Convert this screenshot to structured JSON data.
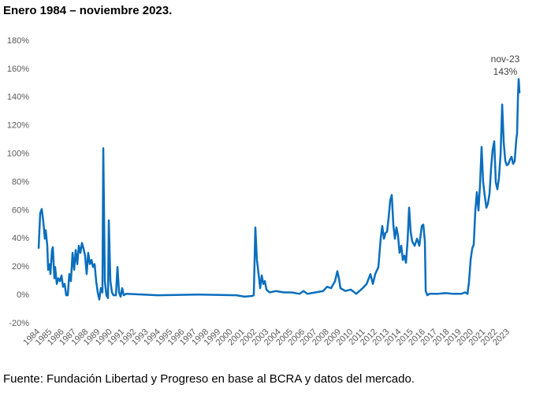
{
  "chart_data": {
    "type": "line",
    "title": "Enero 1984 – noviembre 2023.",
    "source": "Fuente: Fundación Libertad y Progreso en base al BCRA y datos del mercado.",
    "annotations": [
      {
        "text": "nov-23"
      },
      {
        "text": "143%"
      }
    ],
    "color": "#0a6ebd",
    "grid": false,
    "xlim": [
      1984,
      2024
    ],
    "xticks": [
      1984,
      1985,
      1986,
      1987,
      1988,
      1989,
      1990,
      1991,
      1992,
      1993,
      1994,
      1995,
      1996,
      1997,
      1998,
      1999,
      2000,
      2001,
      2002,
      2003,
      2004,
      2005,
      2006,
      2007,
      2008,
      2009,
      2010,
      2011,
      2012,
      2013,
      2014,
      2015,
      2016,
      2017,
      2018,
      2019,
      2020,
      2021,
      2022,
      2023
    ],
    "ylim": [
      -20,
      180
    ],
    "yticks": [
      {
        "value": -20,
        "label": "-20%"
      },
      {
        "value": 0,
        "label": "0%"
      },
      {
        "value": 20,
        "label": "20%"
      },
      {
        "value": 40,
        "label": "40%"
      },
      {
        "value": 60,
        "label": "60%"
      },
      {
        "value": 80,
        "label": "80%"
      },
      {
        "value": 100,
        "label": "100%"
      },
      {
        "value": 120,
        "label": "120%"
      },
      {
        "value": 140,
        "label": "140%"
      },
      {
        "value": 160,
        "label": "160%"
      },
      {
        "value": 180,
        "label": "180%"
      }
    ],
    "x": [
      1984.0,
      1984.13,
      1984.26,
      1984.39,
      1984.52,
      1984.59,
      1984.72,
      1984.79,
      1984.92,
      1984.98,
      1985.11,
      1985.18,
      1985.31,
      1985.37,
      1985.51,
      1985.64,
      1985.77,
      1985.9,
      1986.03,
      1986.16,
      1986.29,
      1986.42,
      1986.55,
      1986.68,
      1986.82,
      1986.95,
      1987.08,
      1987.21,
      1987.34,
      1987.47,
      1987.6,
      1987.73,
      1987.86,
      1987.99,
      1988.12,
      1988.26,
      1988.39,
      1988.52,
      1988.65,
      1988.78,
      1988.91,
      1989.04,
      1989.17,
      1989.3,
      1989.37,
      1989.5,
      1989.63,
      1989.76,
      1989.83,
      1989.96,
      1990.09,
      1990.22,
      1990.42,
      1990.55,
      1990.68,
      1990.81,
      1990.94,
      1991.07,
      1991.27,
      1993.89,
      1997.16,
      2000.43,
      2001.09,
      2001.74,
      2001.87,
      2002.0,
      2002.13,
      2002.27,
      2002.4,
      2002.53,
      2002.66,
      2002.79,
      2002.92,
      2003.18,
      2003.71,
      2004.36,
      2005.02,
      2005.67,
      2006.0,
      2006.33,
      2006.98,
      2007.63,
      2007.96,
      2008.29,
      2008.62,
      2008.81,
      2008.94,
      2009.07,
      2009.47,
      2009.93,
      2010.38,
      2010.91,
      2011.24,
      2011.56,
      2011.76,
      2011.96,
      2012.22,
      2012.41,
      2012.54,
      2012.68,
      2012.81,
      2012.94,
      2013.07,
      2013.2,
      2013.33,
      2013.46,
      2013.59,
      2013.72,
      2013.85,
      2013.98,
      2014.12,
      2014.25,
      2014.38,
      2014.51,
      2014.64,
      2014.77,
      2014.9,
      2015.03,
      2015.23,
      2015.43,
      2015.62,
      2015.82,
      2015.95,
      2016.08,
      2016.15,
      2016.28,
      2016.47,
      2017.13,
      2017.78,
      2018.44,
      2019.09,
      2019.42,
      2019.62,
      2019.75,
      2019.88,
      2020.01,
      2020.14,
      2020.27,
      2020.4,
      2020.53,
      2020.66,
      2020.79,
      2020.92,
      2021.06,
      2021.19,
      2021.32,
      2021.45,
      2021.58,
      2021.71,
      2021.84,
      2021.97,
      2022.1,
      2022.23,
      2022.37,
      2022.5,
      2022.63,
      2022.76,
      2022.89,
      2023.02,
      2023.15,
      2023.28,
      2023.41,
      2023.54,
      2023.67,
      2023.74,
      2023.81,
      2023.87,
      2023.94
    ],
    "values": [
      33,
      58,
      61,
      52,
      40,
      46,
      35,
      18,
      22,
      15,
      32,
      34,
      12,
      20,
      8,
      12,
      10,
      14,
      6,
      8,
      0,
      0,
      15,
      10,
      30,
      18,
      32,
      22,
      35,
      30,
      37,
      33,
      28,
      15,
      30,
      22,
      25,
      20,
      22,
      10,
      2,
      -3,
      5,
      2,
      104,
      10,
      0,
      -2,
      53,
      10,
      2,
      0,
      0,
      20,
      2,
      -1,
      5,
      0,
      1,
      0,
      0.5,
      0,
      -1,
      -0.5,
      0,
      48,
      25,
      15,
      5,
      14,
      8,
      10,
      4,
      2,
      3,
      2,
      2,
      1,
      3,
      1,
      2,
      3,
      6,
      5,
      10,
      17,
      12,
      5,
      3,
      4,
      1,
      5,
      8,
      15,
      8,
      15,
      20,
      40,
      49,
      40,
      44,
      45,
      55,
      67,
      71,
      50,
      40,
      48,
      42,
      30,
      35,
      25,
      28,
      23,
      38,
      62,
      45,
      38,
      35,
      40,
      35,
      49,
      50,
      38,
      3,
      0,
      1,
      1,
      1.5,
      1,
      1,
      2,
      1,
      10,
      25,
      33,
      36,
      60,
      73,
      60,
      78,
      105,
      80,
      70,
      62,
      65,
      72,
      90,
      103,
      109,
      80,
      75,
      83,
      100,
      135,
      108,
      95,
      92,
      93,
      96,
      98,
      93,
      95,
      110,
      115,
      140,
      153,
      143
    ]
  }
}
